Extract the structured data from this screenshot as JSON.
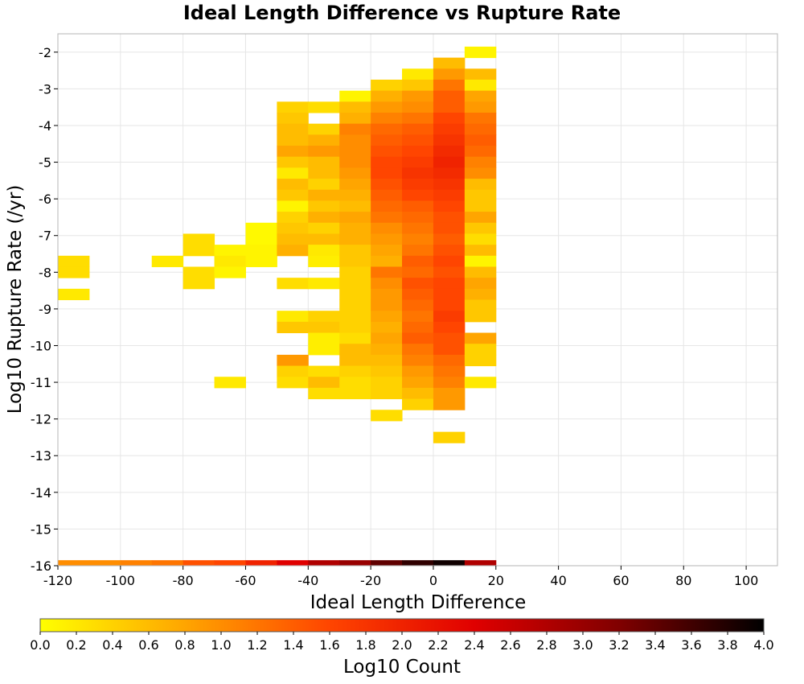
{
  "chart_data": {
    "type": "heatmap",
    "title": "Ideal Length Difference vs Rupture Rate",
    "xlabel": "Ideal Length Difference",
    "ylabel": "Log10 Rupture Rate (/yr)",
    "colorbar_label": "Log10 Count",
    "xlim": [
      -120,
      110
    ],
    "ylim": [
      -16,
      -1.5
    ],
    "x_ticks": [
      -120,
      -100,
      -80,
      -60,
      -40,
      -20,
      0,
      20,
      40,
      60,
      80,
      100
    ],
    "y_ticks": [
      -2,
      -3,
      -4,
      -5,
      -6,
      -7,
      -8,
      -9,
      -10,
      -11,
      -12,
      -13,
      -14,
      -15,
      -16
    ],
    "colorbar_range": [
      0.0,
      4.0
    ],
    "colorbar_ticks": [
      "0.0",
      "0.2",
      "0.4",
      "0.6",
      "0.8",
      "1.0",
      "1.2",
      "1.4",
      "1.6",
      "1.8",
      "2.0",
      "2.2",
      "2.4",
      "2.6",
      "2.8",
      "3.0",
      "3.2",
      "3.4",
      "3.6",
      "3.8",
      "4.0"
    ],
    "colormap": [
      "#ffff00",
      "#ffa500",
      "#ff4500",
      "#e00000",
      "#800000",
      "#000000"
    ],
    "grid": true,
    "x_bin_width": 10,
    "y_bin_height": 0.3,
    "columns": [
      {
        "x": -120,
        "cells": [
          [
            -7.7,
            0.3
          ],
          [
            -8.0,
            0.3
          ],
          [
            -8.6,
            0.2
          ]
        ]
      },
      {
        "x": -90,
        "cells": [
          [
            -7.7,
            0.2
          ]
        ]
      },
      {
        "x": -80,
        "cells": [
          [
            -7.1,
            0.3
          ],
          [
            -7.4,
            0.3
          ],
          [
            -8.0,
            0.3
          ],
          [
            -8.3,
            0.3
          ]
        ]
      },
      {
        "x": -70,
        "cells": [
          [
            -7.4,
            0.1
          ],
          [
            -7.7,
            0.2
          ],
          [
            -8.0,
            0.1
          ],
          [
            -11.0,
            0.2
          ]
        ]
      },
      {
        "x": -60,
        "cells": [
          [
            -6.8,
            0.05
          ],
          [
            -7.1,
            0.05
          ],
          [
            -7.4,
            0.1
          ],
          [
            -7.7,
            0.1
          ]
        ]
      },
      {
        "x": -50,
        "cells": [
          [
            -3.5,
            0.4
          ],
          [
            -3.8,
            0.5
          ],
          [
            -4.1,
            0.6
          ],
          [
            -4.4,
            0.6
          ],
          [
            -4.7,
            0.8
          ],
          [
            -5.0,
            0.5
          ],
          [
            -5.3,
            0.2
          ],
          [
            -5.6,
            0.6
          ],
          [
            -5.9,
            0.5
          ],
          [
            -6.2,
            0.1
          ],
          [
            -6.5,
            0.4
          ],
          [
            -6.8,
            0.5
          ],
          [
            -7.1,
            0.6
          ],
          [
            -7.4,
            0.7
          ],
          [
            -8.3,
            0.3
          ],
          [
            -9.2,
            0.2
          ],
          [
            -9.5,
            0.5
          ],
          [
            -10.4,
            0.9
          ],
          [
            -10.7,
            0.4
          ],
          [
            -11.0,
            0.3
          ]
        ]
      },
      {
        "x": -40,
        "cells": [
          [
            -3.5,
            0.3
          ],
          [
            -4.1,
            0.4
          ],
          [
            -4.4,
            0.7
          ],
          [
            -4.7,
            0.9
          ],
          [
            -5.0,
            0.6
          ],
          [
            -5.3,
            0.6
          ],
          [
            -5.6,
            0.4
          ],
          [
            -5.9,
            0.7
          ],
          [
            -6.2,
            0.5
          ],
          [
            -6.5,
            0.7
          ],
          [
            -6.8,
            0.4
          ],
          [
            -7.1,
            0.6
          ],
          [
            -7.4,
            0.2
          ],
          [
            -7.7,
            0.15
          ],
          [
            -8.3,
            0.2
          ],
          [
            -9.2,
            0.4
          ],
          [
            -9.5,
            0.5
          ],
          [
            -9.8,
            0.15
          ],
          [
            -10.1,
            0.15
          ],
          [
            -10.7,
            0.3
          ],
          [
            -11.0,
            0.6
          ],
          [
            -11.3,
            0.3
          ]
        ]
      },
      {
        "x": -30,
        "cells": [
          [
            -3.2,
            0.1
          ],
          [
            -3.5,
            0.6
          ],
          [
            -3.8,
            0.7
          ],
          [
            -4.1,
            1.1
          ],
          [
            -4.4,
            1.0
          ],
          [
            -4.7,
            1.0
          ],
          [
            -5.0,
            1.0
          ],
          [
            -5.3,
            0.9
          ],
          [
            -5.6,
            0.8
          ],
          [
            -5.9,
            0.7
          ],
          [
            -6.2,
            0.6
          ],
          [
            -6.5,
            0.8
          ],
          [
            -6.8,
            0.7
          ],
          [
            -7.1,
            0.7
          ],
          [
            -7.4,
            0.5
          ],
          [
            -7.7,
            0.5
          ],
          [
            -8.0,
            0.4
          ],
          [
            -8.3,
            0.4
          ],
          [
            -8.6,
            0.4
          ],
          [
            -8.9,
            0.4
          ],
          [
            -9.2,
            0.4
          ],
          [
            -9.5,
            0.4
          ],
          [
            -9.8,
            0.3
          ],
          [
            -10.1,
            0.6
          ],
          [
            -10.4,
            0.6
          ],
          [
            -10.7,
            0.4
          ],
          [
            -11.0,
            0.3
          ],
          [
            -11.3,
            0.3
          ]
        ]
      },
      {
        "x": -20,
        "cells": [
          [
            -2.9,
            0.4
          ],
          [
            -3.2,
            0.7
          ],
          [
            -3.5,
            0.9
          ],
          [
            -3.8,
            1.1
          ],
          [
            -4.1,
            1.3
          ],
          [
            -4.4,
            1.4
          ],
          [
            -4.7,
            1.5
          ],
          [
            -5.0,
            1.6
          ],
          [
            -5.3,
            1.6
          ],
          [
            -5.6,
            1.5
          ],
          [
            -5.9,
            1.4
          ],
          [
            -6.2,
            1.3
          ],
          [
            -6.5,
            1.2
          ],
          [
            -6.8,
            1.0
          ],
          [
            -7.1,
            0.9
          ],
          [
            -7.4,
            0.8
          ],
          [
            -7.7,
            0.7
          ],
          [
            -8.0,
            1.2
          ],
          [
            -8.3,
            1.0
          ],
          [
            -8.6,
            0.9
          ],
          [
            -8.9,
            0.9
          ],
          [
            -9.2,
            0.8
          ],
          [
            -9.5,
            0.7
          ],
          [
            -9.8,
            0.8
          ],
          [
            -10.1,
            0.7
          ],
          [
            -10.4,
            0.6
          ],
          [
            -10.7,
            0.5
          ],
          [
            -11.0,
            0.4
          ],
          [
            -11.3,
            0.4
          ],
          [
            -11.9,
            0.3
          ]
        ]
      },
      {
        "x": -10,
        "cells": [
          [
            -2.6,
            0.2
          ],
          [
            -2.9,
            0.5
          ],
          [
            -3.2,
            0.9
          ],
          [
            -3.5,
            1.0
          ],
          [
            -3.8,
            1.2
          ],
          [
            -4.1,
            1.4
          ],
          [
            -4.4,
            1.5
          ],
          [
            -4.7,
            1.6
          ],
          [
            -5.0,
            1.7
          ],
          [
            -5.3,
            1.8
          ],
          [
            -5.6,
            1.7
          ],
          [
            -5.9,
            1.6
          ],
          [
            -6.2,
            1.4
          ],
          [
            -6.5,
            1.3
          ],
          [
            -6.8,
            1.2
          ],
          [
            -7.1,
            1.1
          ],
          [
            -7.4,
            1.2
          ],
          [
            -7.7,
            1.4
          ],
          [
            -8.0,
            1.3
          ],
          [
            -8.3,
            1.5
          ],
          [
            -8.6,
            1.4
          ],
          [
            -8.9,
            1.3
          ],
          [
            -9.2,
            1.2
          ],
          [
            -9.5,
            1.3
          ],
          [
            -9.8,
            1.4
          ],
          [
            -10.1,
            1.2
          ],
          [
            -10.4,
            1.1
          ],
          [
            -10.7,
            0.9
          ],
          [
            -11.0,
            0.8
          ],
          [
            -11.3,
            0.6
          ],
          [
            -11.6,
            0.4
          ]
        ]
      },
      {
        "x": 0,
        "cells": [
          [
            -2.3,
            0.6
          ],
          [
            -2.6,
            0.9
          ],
          [
            -2.9,
            1.2
          ],
          [
            -3.2,
            1.4
          ],
          [
            -3.5,
            1.4
          ],
          [
            -3.8,
            1.6
          ],
          [
            -4.1,
            1.7
          ],
          [
            -4.4,
            1.8
          ],
          [
            -4.7,
            1.9
          ],
          [
            -5.0,
            2.0
          ],
          [
            -5.3,
            1.9
          ],
          [
            -5.6,
            1.8
          ],
          [
            -5.9,
            1.7
          ],
          [
            -6.2,
            1.6
          ],
          [
            -6.5,
            1.5
          ],
          [
            -6.8,
            1.5
          ],
          [
            -7.1,
            1.4
          ],
          [
            -7.4,
            1.5
          ],
          [
            -7.7,
            1.6
          ],
          [
            -8.0,
            1.5
          ],
          [
            -8.3,
            1.6
          ],
          [
            -8.6,
            1.6
          ],
          [
            -8.9,
            1.6
          ],
          [
            -9.2,
            1.7
          ],
          [
            -9.5,
            1.6
          ],
          [
            -9.8,
            1.5
          ],
          [
            -10.1,
            1.5
          ],
          [
            -10.4,
            1.3
          ],
          [
            -10.7,
            1.2
          ],
          [
            -11.0,
            1.1
          ],
          [
            -11.3,
            0.9
          ],
          [
            -11.6,
            0.9
          ],
          [
            -12.5,
            0.4
          ]
        ]
      },
      {
        "x": 10,
        "cells": [
          [
            -2.0,
            0.1
          ],
          [
            -2.6,
            0.6
          ],
          [
            -2.9,
            0.2
          ],
          [
            -3.2,
            0.8
          ],
          [
            -3.5,
            0.9
          ],
          [
            -3.8,
            1.2
          ],
          [
            -4.1,
            1.3
          ],
          [
            -4.4,
            1.4
          ],
          [
            -4.7,
            1.3
          ],
          [
            -5.0,
            1.1
          ],
          [
            -5.3,
            1.0
          ],
          [
            -5.6,
            0.6
          ],
          [
            -5.9,
            0.5
          ],
          [
            -6.2,
            0.5
          ],
          [
            -6.5,
            0.8
          ],
          [
            -6.8,
            0.5
          ],
          [
            -7.1,
            0.3
          ],
          [
            -7.4,
            0.6
          ],
          [
            -7.7,
            0.1
          ],
          [
            -8.0,
            0.6
          ],
          [
            -8.3,
            0.8
          ],
          [
            -8.6,
            0.7
          ],
          [
            -8.9,
            0.5
          ],
          [
            -9.2,
            0.5
          ],
          [
            -9.8,
            0.8
          ],
          [
            -10.1,
            0.4
          ],
          [
            -10.4,
            0.4
          ],
          [
            -11.0,
            0.2
          ]
        ]
      }
    ],
    "bottom_row": {
      "y": -16.0,
      "values": [
        {
          "x": -120,
          "v": 1.0
        },
        {
          "x": -110,
          "v": 1.0
        },
        {
          "x": -100,
          "v": 1.1
        },
        {
          "x": -90,
          "v": 1.2
        },
        {
          "x": -80,
          "v": 1.5
        },
        {
          "x": -70,
          "v": 1.6
        },
        {
          "x": -60,
          "v": 2.0
        },
        {
          "x": -50,
          "v": 2.4
        },
        {
          "x": -40,
          "v": 2.8
        },
        {
          "x": -30,
          "v": 3.0
        },
        {
          "x": -20,
          "v": 3.4
        },
        {
          "x": -10,
          "v": 3.7
        },
        {
          "x": 0,
          "v": 3.9
        },
        {
          "x": 10,
          "v": 2.8
        }
      ]
    }
  }
}
